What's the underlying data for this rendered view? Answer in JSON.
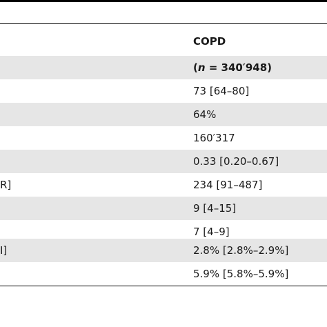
{
  "table": {
    "header": {
      "group_label": "COPD",
      "n_open": "(",
      "n_italic": "n",
      "n_value": " = 340′948)"
    },
    "rows": [
      {
        "left": "",
        "value": "73 [64–80]"
      },
      {
        "left": "",
        "value": "64%"
      },
      {
        "left": "",
        "value": "160′317"
      },
      {
        "left": "",
        "value": "0.33 [0.20–0.67]"
      },
      {
        "left": "R]",
        "value": "234 [91–487]"
      },
      {
        "left": "",
        "value": "9 [4–15]"
      },
      {
        "left": "",
        "value": "7 [4–9]"
      },
      {
        "left": "I]",
        "value": "2.8% [2.8%–2.9%]"
      },
      {
        "left": "",
        "value": "5.9% [5.8%–5.9%]"
      }
    ]
  }
}
